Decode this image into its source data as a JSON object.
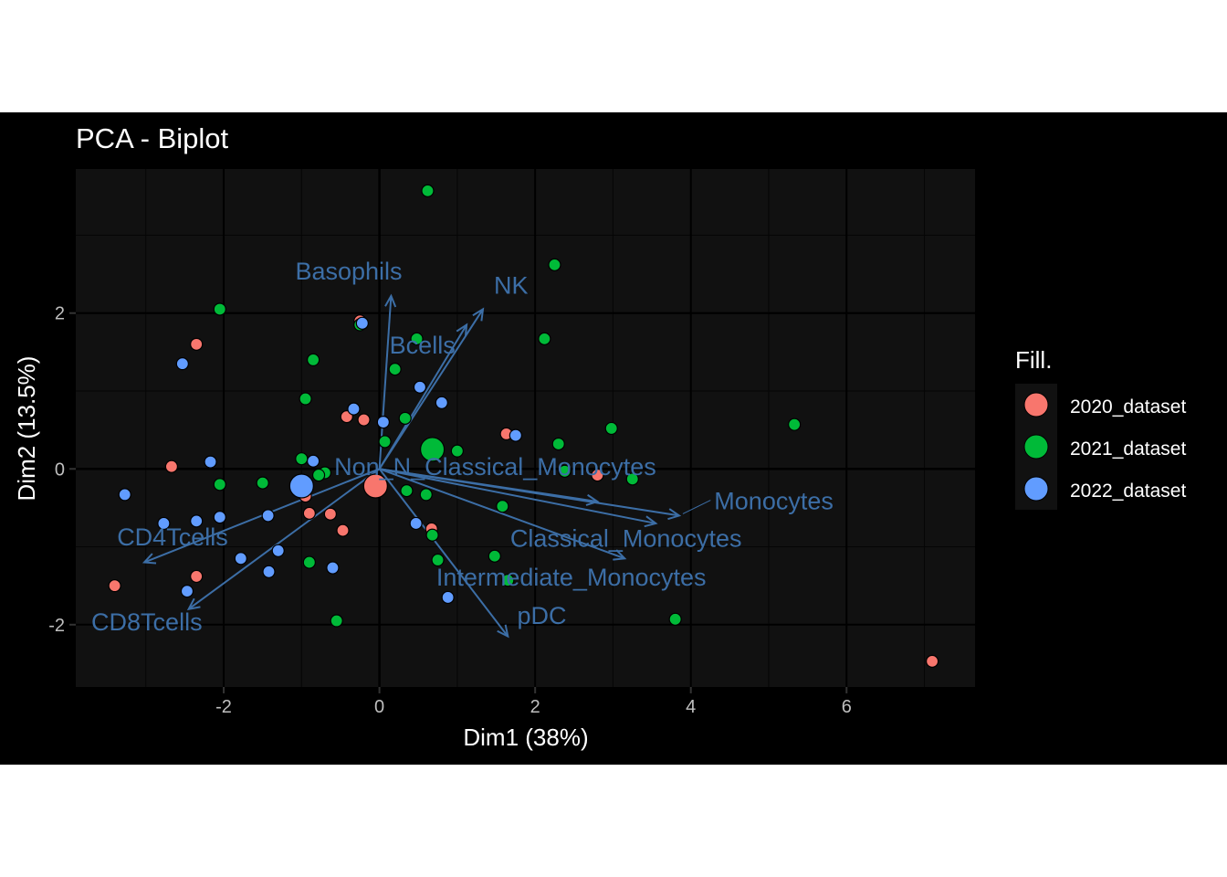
{
  "chart_data": {
    "type": "scatter",
    "title": "PCA - Biplot",
    "xlabel": "Dim1 (38%)",
    "ylabel": "Dim2 (13.5%)",
    "xlim": [
      -3.9,
      7.65
    ],
    "ylim": [
      -2.8,
      3.85
    ],
    "x_ticks": [
      -2,
      0,
      2,
      4,
      6
    ],
    "y_ticks": [
      -2,
      0,
      2
    ],
    "grid": true,
    "legend": {
      "title": "Fill.",
      "placement": "right",
      "entries": [
        {
          "label": "2020_dataset",
          "color": "#F8766D"
        },
        {
          "label": "2021_dataset",
          "color": "#00BA38"
        },
        {
          "label": "2022_dataset",
          "color": "#619CFF"
        }
      ]
    },
    "colors": {
      "background": "#000000",
      "panel": "#111111",
      "grid_major": "#000000",
      "variable_arrows": "#3C6EA6",
      "point_outline": "#000000"
    },
    "series": [
      {
        "name": "2020_dataset",
        "color": "#F8766D",
        "points": [
          [
            -0.25,
            1.9
          ],
          [
            -2.35,
            1.6
          ],
          [
            -0.42,
            0.67
          ],
          [
            -0.2,
            0.63
          ],
          [
            1.63,
            0.45
          ],
          [
            2.8,
            -0.08
          ],
          [
            -2.67,
            0.03
          ],
          [
            -0.95,
            -0.35
          ],
          [
            -0.9,
            -0.57
          ],
          [
            -0.63,
            -0.58
          ],
          [
            -0.47,
            -0.79
          ],
          [
            0.67,
            -0.77
          ],
          [
            -2.35,
            -1.38
          ],
          [
            -3.4,
            -1.5
          ],
          [
            7.1,
            -2.47
          ]
        ],
        "centroid": [
          -0.05,
          -0.22
        ]
      },
      {
        "name": "2021_dataset",
        "color": "#00BA38",
        "points": [
          [
            0.62,
            3.57
          ],
          [
            2.25,
            2.62
          ],
          [
            -2.05,
            2.05
          ],
          [
            -0.25,
            1.85
          ],
          [
            0.48,
            1.67
          ],
          [
            2.12,
            1.67
          ],
          [
            -0.85,
            1.4
          ],
          [
            0.2,
            1.28
          ],
          [
            -0.95,
            0.9
          ],
          [
            0.33,
            0.65
          ],
          [
            2.98,
            0.52
          ],
          [
            5.33,
            0.57
          ],
          [
            0.07,
            0.35
          ],
          [
            2.3,
            0.32
          ],
          [
            1.0,
            0.23
          ],
          [
            -1.0,
            0.13
          ],
          [
            -0.7,
            -0.05
          ],
          [
            -0.78,
            -0.08
          ],
          [
            2.38,
            -0.03
          ],
          [
            3.25,
            -0.13
          ],
          [
            -1.5,
            -0.18
          ],
          [
            -2.05,
            -0.2
          ],
          [
            0.35,
            -0.28
          ],
          [
            0.6,
            -0.33
          ],
          [
            1.58,
            -0.48
          ],
          [
            0.68,
            -0.85
          ],
          [
            1.48,
            -1.12
          ],
          [
            0.75,
            -1.17
          ],
          [
            -0.9,
            -1.2
          ],
          [
            1.65,
            -1.43
          ],
          [
            -0.55,
            -1.95
          ],
          [
            3.8,
            -1.93
          ]
        ],
        "centroid": [
          0.68,
          0.25
        ]
      },
      {
        "name": "2022_dataset",
        "color": "#619CFF",
        "points": [
          [
            -0.22,
            1.87
          ],
          [
            -2.53,
            1.35
          ],
          [
            0.52,
            1.05
          ],
          [
            0.8,
            0.85
          ],
          [
            -0.33,
            0.77
          ],
          [
            0.05,
            0.6
          ],
          [
            1.75,
            0.43
          ],
          [
            -2.17,
            0.09
          ],
          [
            -0.85,
            0.1
          ],
          [
            -3.27,
            -0.33
          ],
          [
            -2.77,
            -0.7
          ],
          [
            -2.35,
            -0.67
          ],
          [
            -2.05,
            -0.62
          ],
          [
            -1.43,
            -0.6
          ],
          [
            0.47,
            -0.7
          ],
          [
            -1.3,
            -1.05
          ],
          [
            -1.78,
            -1.15
          ],
          [
            -1.42,
            -1.32
          ],
          [
            -0.6,
            -1.27
          ],
          [
            -2.47,
            -1.57
          ],
          [
            0.88,
            -1.65
          ]
        ],
        "centroid": [
          -1.0,
          -0.22
        ]
      }
    ],
    "variables": [
      {
        "name": "Basophils",
        "x": 0.15,
        "y": 2.22,
        "label_x": -1.08,
        "label_y": 2.43
      },
      {
        "name": "NK",
        "x": 1.33,
        "y": 2.05,
        "label_x": 1.47,
        "label_y": 2.25
      },
      {
        "name": "Bcells",
        "x": 1.12,
        "y": 1.85,
        "label_x": 0.13,
        "label_y": 1.48
      },
      {
        "name": "Non_N_Classical_Monocytes",
        "x": 2.8,
        "y": -0.42,
        "label_x": -0.58,
        "label_y": -0.08
      },
      {
        "name": "Monocytes",
        "x": 3.85,
        "y": -0.6,
        "label_x": 4.3,
        "label_y": -0.52
      },
      {
        "name": "Classical_Monocytes",
        "x": 3.15,
        "y": -1.15,
        "label_x": 1.68,
        "label_y": -1.0
      },
      {
        "name": "Intermediate_Monocytes",
        "x": 3.55,
        "y": -0.7,
        "label_x": 0.73,
        "label_y": -1.5
      },
      {
        "name": "pDC",
        "x": 1.65,
        "y": -2.15,
        "label_x": 1.77,
        "label_y": -1.99
      },
      {
        "name": "CD4Tcells",
        "x": -3.02,
        "y": -1.2,
        "label_x": -3.37,
        "label_y": -0.98
      },
      {
        "name": "CD8Tcells",
        "x": -2.45,
        "y": -1.8,
        "label_x": -3.7,
        "label_y": -2.07
      }
    ]
  }
}
